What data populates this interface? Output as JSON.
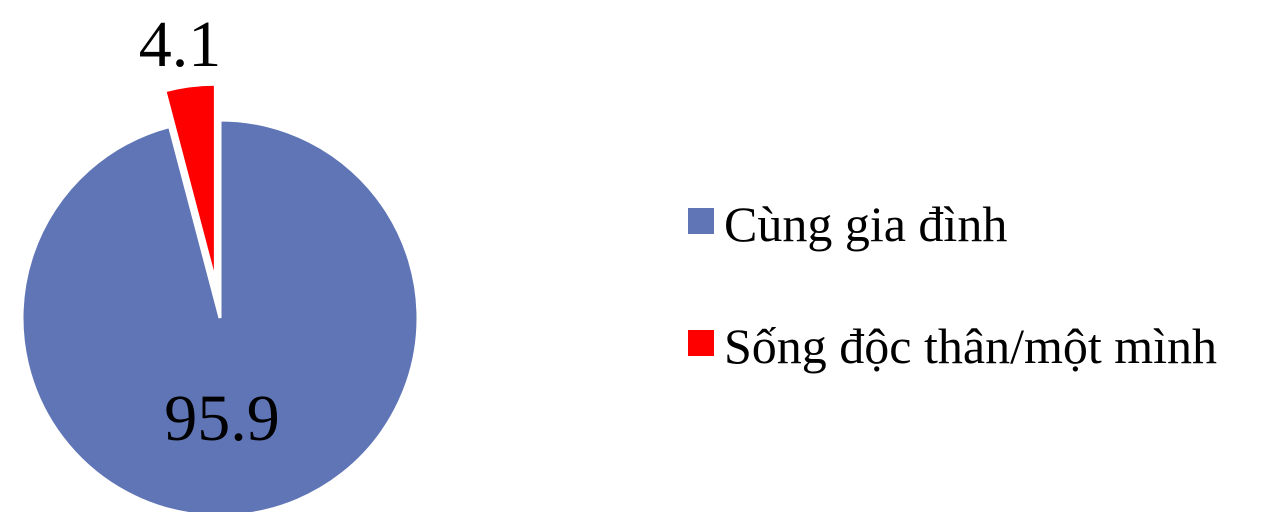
{
  "chart_data": {
    "type": "pie",
    "title": "",
    "slices": [
      {
        "label": "Cùng gia đình",
        "value": 95.9,
        "color": "#6075b6"
      },
      {
        "label": "Sống độc thân/một mình",
        "value": 4.1,
        "color": "#ff0000",
        "exploded": true
      }
    ],
    "legend": {
      "placement": "right"
    },
    "data_labels": [
      "95.9",
      "4.1"
    ]
  }
}
